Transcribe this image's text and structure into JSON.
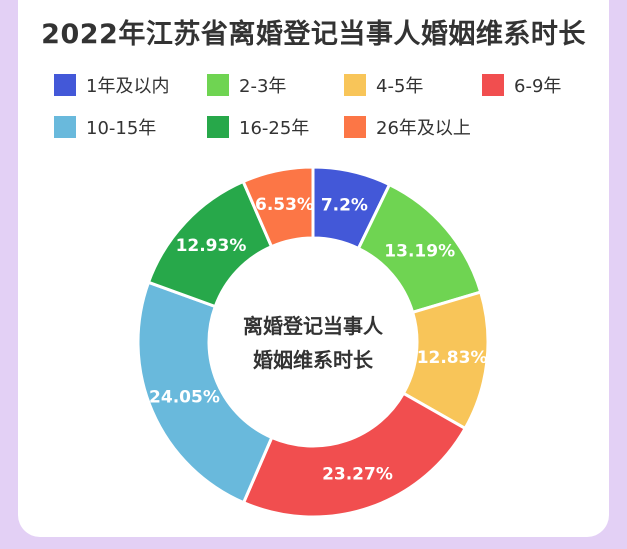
{
  "title": "2022年江苏省离婚登记当事人婚姻维系时长",
  "center_label_lines": [
    "离婚登记当事人",
    "婚姻维系时长"
  ],
  "chart_data": {
    "type": "pie",
    "title": "2022年江苏省离婚登记当事人婚姻维系时长",
    "categories": [
      "1年及以内",
      "2-3年",
      "4-5年",
      "6-9年",
      "10-15年",
      "16-25年",
      "26年及以上"
    ],
    "values": [
      7.2,
      13.19,
      12.83,
      23.27,
      24.05,
      12.93,
      6.53
    ],
    "value_labels": [
      "7.2%",
      "13.19%",
      "12.83%",
      "23.27%",
      "24.05%",
      "12.93%",
      "6.53%"
    ],
    "colors": [
      "#4358d8",
      "#6fd452",
      "#f8c559",
      "#f14e4f",
      "#69b9dc",
      "#27a84a",
      "#fc7646"
    ],
    "donut": true,
    "legend_position": "top"
  }
}
